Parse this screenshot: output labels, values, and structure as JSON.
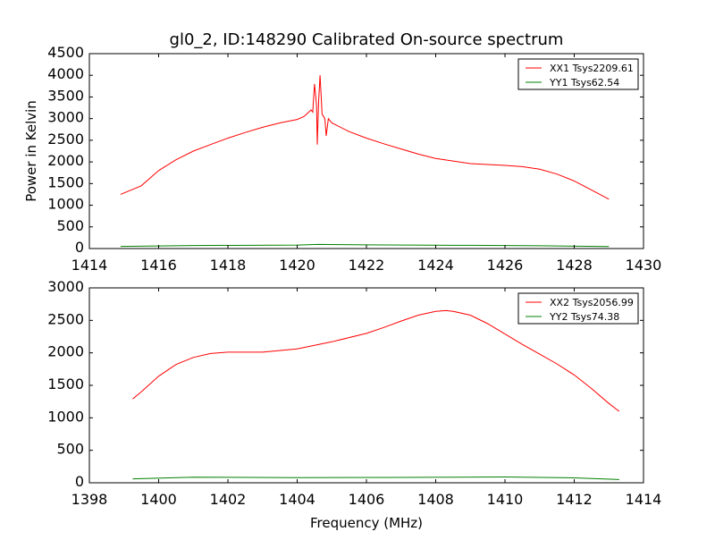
{
  "chart_data": [
    {
      "type": "line",
      "title": "gl0_2, ID:148290 Calibrated On-source spectrum",
      "xlabel": "",
      "ylabel": "Power in Kelvin",
      "xlim": [
        1414,
        1430
      ],
      "ylim": [
        0,
        4500
      ],
      "xticks": [
        1414,
        1416,
        1418,
        1420,
        1422,
        1424,
        1426,
        1428,
        1430
      ],
      "yticks": [
        0,
        500,
        1000,
        1500,
        2000,
        2500,
        3000,
        3500,
        4000,
        4500
      ],
      "legend_position": "top-right",
      "series": [
        {
          "name": "XX1 Tsys2209.61",
          "color": "#ff0000",
          "x": [
            1414.9,
            1415.5,
            1416,
            1416.5,
            1417,
            1417.5,
            1418,
            1418.5,
            1419,
            1419.5,
            1420,
            1420.2,
            1420.4,
            1420.45,
            1420.5,
            1420.56,
            1420.58,
            1420.62,
            1420.66,
            1420.72,
            1420.8,
            1420.84,
            1420.9,
            1421,
            1421.5,
            1422,
            1422.5,
            1423,
            1423.5,
            1424,
            1424.5,
            1425,
            1425.5,
            1426,
            1426.5,
            1427,
            1427.5,
            1428,
            1428.5,
            1429
          ],
          "y": [
            1250,
            1450,
            1800,
            2050,
            2250,
            2400,
            2550,
            2680,
            2800,
            2900,
            2980,
            3050,
            3200,
            3150,
            3800,
            3300,
            2400,
            3400,
            4000,
            3100,
            3000,
            2600,
            3000,
            2900,
            2700,
            2550,
            2420,
            2300,
            2180,
            2080,
            2020,
            1960,
            1940,
            1920,
            1890,
            1830,
            1720,
            1560,
            1350,
            1140
          ]
        },
        {
          "name": "YY1 Tsys62.54",
          "color": "#008000",
          "x": [
            1414.9,
            1417,
            1420,
            1420.6,
            1422,
            1425,
            1427,
            1429
          ],
          "y": [
            50,
            70,
            80,
            95,
            85,
            75,
            65,
            45
          ]
        }
      ]
    },
    {
      "type": "line",
      "title": "",
      "xlabel": "Frequency (MHz)",
      "ylabel": "",
      "xlim": [
        1398,
        1414
      ],
      "ylim": [
        0,
        3000
      ],
      "xticks": [
        1398,
        1400,
        1402,
        1404,
        1406,
        1408,
        1410,
        1412,
        1414
      ],
      "yticks": [
        0,
        500,
        1000,
        1500,
        2000,
        2500,
        3000
      ],
      "legend_position": "top-right",
      "series": [
        {
          "name": "XX2 Tsys2056.99",
          "color": "#ff0000",
          "x": [
            1399.25,
            1399.5,
            1400,
            1400.5,
            1401,
            1401.5,
            1402,
            1403,
            1404,
            1405,
            1406,
            1406.5,
            1407,
            1407.5,
            1408,
            1408.3,
            1408.5,
            1409,
            1409.5,
            1410,
            1410.5,
            1411,
            1411.5,
            1412,
            1412.5,
            1413,
            1413.3
          ],
          "y": [
            1290,
            1400,
            1640,
            1820,
            1930,
            1990,
            2010,
            2010,
            2060,
            2170,
            2300,
            2390,
            2490,
            2580,
            2640,
            2650,
            2640,
            2580,
            2450,
            2290,
            2130,
            1980,
            1830,
            1660,
            1450,
            1220,
            1100
          ]
        },
        {
          "name": "YY2 Tsys74.38",
          "color": "#008000",
          "x": [
            1399.25,
            1401,
            1404,
            1407,
            1410,
            1412,
            1413.3
          ],
          "y": [
            60,
            85,
            80,
            82,
            90,
            75,
            50
          ]
        }
      ]
    }
  ]
}
